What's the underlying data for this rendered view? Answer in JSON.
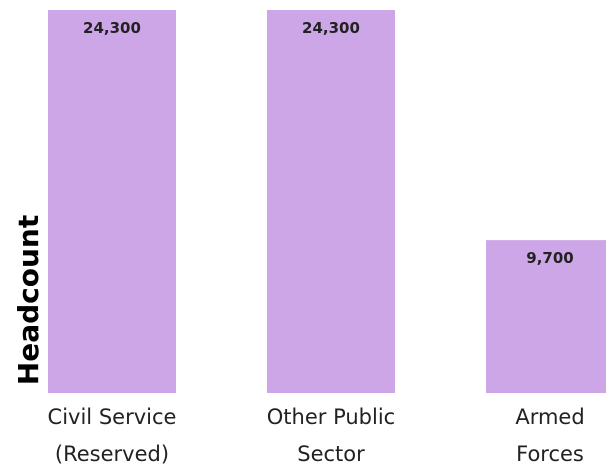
{
  "chart_data": {
    "type": "bar",
    "title": "",
    "xlabel": "",
    "ylabel": "Headcount",
    "ylim": [
      0,
      24300
    ],
    "grid": false,
    "categories": [
      [
        "Civil Service",
        "(Reserved)"
      ],
      [
        "Other Public",
        "Sector"
      ],
      [
        "Armed",
        "Forces"
      ]
    ],
    "values": [
      24300,
      24300,
      9700
    ],
    "data_labels": [
      "24,300",
      "24,300",
      "9,700"
    ],
    "bar_color": "#cca6e6"
  }
}
